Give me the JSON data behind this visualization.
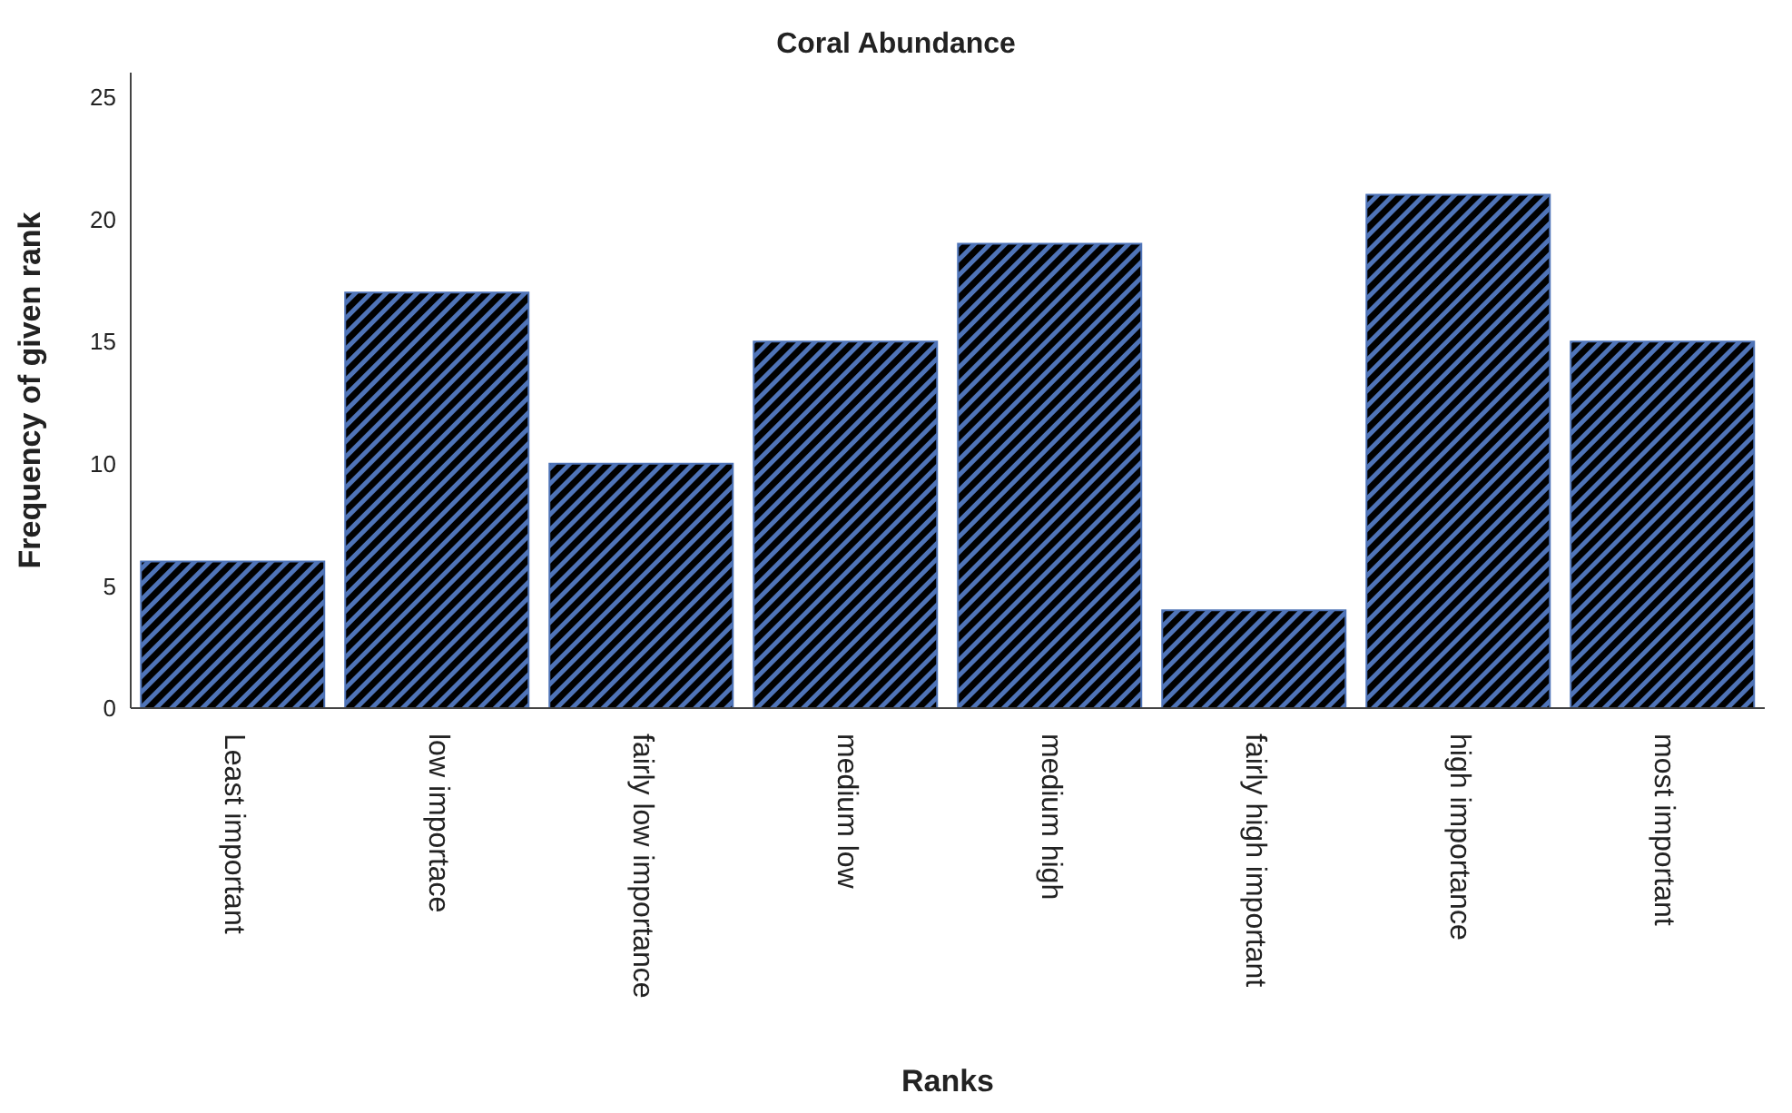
{
  "chart_data": {
    "type": "bar",
    "title": "Coral Abundance",
    "xlabel": "Ranks",
    "ylabel": "Frequency of given rank",
    "categories": [
      "Least important",
      "low importace",
      "fairly low importance",
      "medium low",
      "medium high",
      "fairly high important",
      "high importance",
      "most important"
    ],
    "values": [
      6,
      17,
      10,
      15,
      19,
      4,
      21,
      15
    ],
    "color": "#4f74b8",
    "ylim": [
      0,
      26
    ],
    "yticks": [
      0,
      5,
      10,
      15,
      20,
      25
    ],
    "grid": false,
    "legend": false
  }
}
